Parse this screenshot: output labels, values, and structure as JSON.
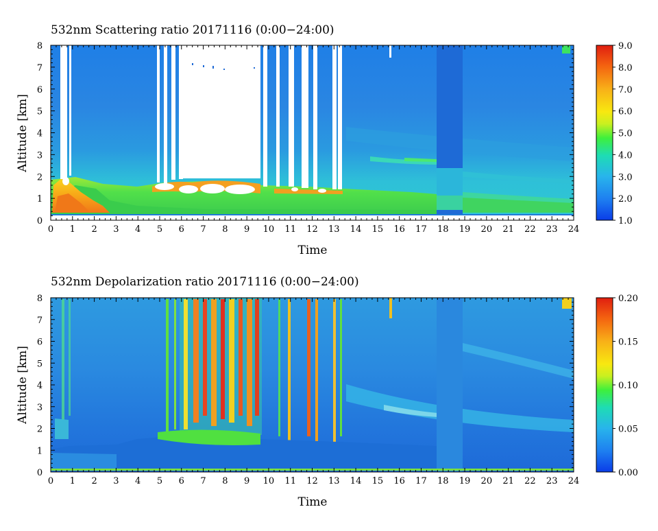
{
  "chart_data": [
    {
      "type": "heatmap",
      "title": "532nm Scattering ratio  20171116 (0:00−24:00)",
      "xlabel": "Time",
      "ylabel": "Altitude [km]",
      "xlim": [
        0,
        24
      ],
      "ylim": [
        0,
        8
      ],
      "x_ticks": [
        "0",
        "1",
        "2",
        "3",
        "4",
        "5",
        "6",
        "7",
        "8",
        "9",
        "10",
        "11",
        "12",
        "13",
        "14",
        "15",
        "16",
        "17",
        "18",
        "19",
        "20",
        "21",
        "22",
        "23",
        "24"
      ],
      "y_ticks": [
        "0",
        "1",
        "2",
        "3",
        "4",
        "5",
        "6",
        "7",
        "8"
      ],
      "colorbar": {
        "min": 1.0,
        "max": 9.0,
        "ticks": [
          "1.0",
          "2.0",
          "3.0",
          "4.0",
          "5.0",
          "6.0",
          "7.0",
          "8.0",
          "9.0"
        ]
      },
      "cloud_mask_white_intervals_hr": [
        [
          0.55,
          0.85
        ],
        [
          1.0,
          1.05
        ],
        [
          4.85,
          5.0
        ],
        [
          5.2,
          5.35
        ],
        [
          5.6,
          5.75
        ],
        [
          5.9,
          9.6
        ],
        [
          9.75,
          9.95
        ],
        [
          10.3,
          10.5
        ],
        [
          10.9,
          11.15
        ],
        [
          11.45,
          11.85
        ],
        [
          12.3,
          12.5
        ],
        [
          12.9,
          13.1
        ],
        [
          13.3,
          13.55
        ],
        [
          15.55,
          15.65
        ]
      ],
      "boundary_layer_top_km": 1.7,
      "elevated_layer": {
        "time_hr": [
          14.8,
          17.7
        ],
        "altitude_km": 2.8
      },
      "data_gap_hr": [
        17.7,
        18.9
      ]
    },
    {
      "type": "heatmap",
      "title": "532nm Depolarization ratio  20171116 (0:00−24:00)",
      "xlabel": "Time",
      "ylabel": "Altitude [km]",
      "xlim": [
        0,
        24
      ],
      "ylim": [
        0,
        8
      ],
      "x_ticks": [
        "0",
        "1",
        "2",
        "3",
        "4",
        "5",
        "6",
        "7",
        "8",
        "9",
        "10",
        "11",
        "12",
        "13",
        "14",
        "15",
        "16",
        "17",
        "18",
        "19",
        "20",
        "21",
        "22",
        "23",
        "24"
      ],
      "y_ticks": [
        "0",
        "1",
        "2",
        "3",
        "4",
        "5",
        "6",
        "7",
        "8"
      ],
      "colorbar": {
        "min": 0.0,
        "max": 0.2,
        "ticks": [
          "0.00",
          "0.05",
          "0.10",
          "0.15",
          "0.20"
        ]
      },
      "high_depolarization_interval_hr": [
        6.0,
        9.6
      ],
      "boundary_layer_top_km": 1.6,
      "near_surface_layer_km": 0.05
    }
  ]
}
